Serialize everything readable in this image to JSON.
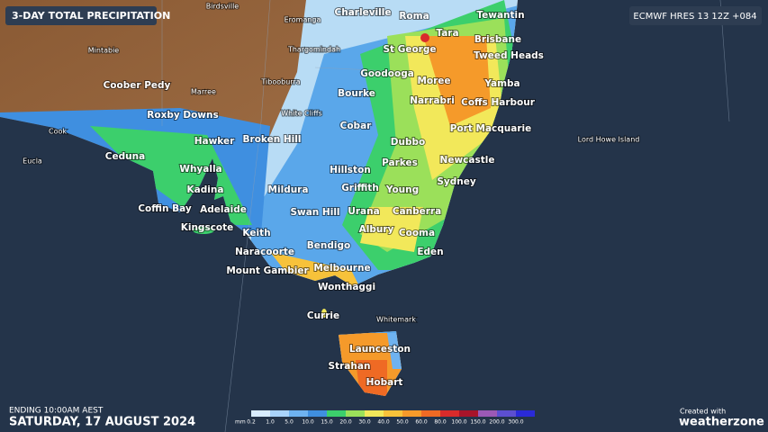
{
  "header": {
    "title": "3-DAY TOTAL PRECIPITATION",
    "model": "ECMWF HRES 13 12Z +084"
  },
  "places": [
    "Birdsville",
    "Eromanga",
    "Charleville",
    "Roma",
    "Tewantin",
    "Tara",
    "Brisbane",
    "Mintabie",
    "Thargomindah",
    "St George",
    "Tweed Heads",
    "Goodooga",
    "Coober Pedy",
    "Marree",
    "Tibooburra",
    "Moree",
    "Yamba",
    "Bourke",
    "Narrabri",
    "Coffs Harbour",
    "White Cliffs",
    "Roxby Downs",
    "Cobar",
    "Port Macquarie",
    "Cook",
    "Hawker",
    "Broken Hill",
    "Dubbo",
    "Lord Howe Island",
    "Ceduna",
    "Parkes",
    "Newcastle",
    "Eucla",
    "Whyalla",
    "Hillston",
    "Sydney",
    "Kadina",
    "Mildura",
    "Griffith",
    "Young",
    "Coffin Bay",
    "Adelaide",
    "Swan Hill",
    "Urana",
    "Canberra",
    "Kingscote",
    "Albury",
    "Cooma",
    "Keith",
    "Bendigo",
    "Naracoorte",
    "Eden",
    "Mount Gambier",
    "Melbourne",
    "Wonthaggi",
    "Currie",
    "Whitemark",
    "Launceston",
    "Strahan",
    "Hobart"
  ],
  "legend": {
    "unit": "mm",
    "labels": [
      "0.2",
      "1.0",
      "5.0",
      "10.0",
      "15.0",
      "20.0",
      "30.0",
      "40.0",
      "50.0",
      "60.0",
      "80.0",
      "100.0",
      "150.0",
      "200.0",
      "300.0"
    ],
    "colors": [
      "#d8ecff",
      "#a9d3fb",
      "#6eb2f0",
      "#3f8fe0",
      "#3ccf6c",
      "#9be05a",
      "#f2e85a",
      "#f7c23a",
      "#f59a2a",
      "#ef6a24",
      "#d92b2b",
      "#a8142a",
      "#9b59b6",
      "#5c4fd0",
      "#2a2ad8"
    ]
  },
  "footer": {
    "ending": "ENDING 10:00AM AEST",
    "date": "SATURDAY, 17 AUGUST 2024",
    "created": "Created with",
    "brand": "weatherzone"
  }
}
